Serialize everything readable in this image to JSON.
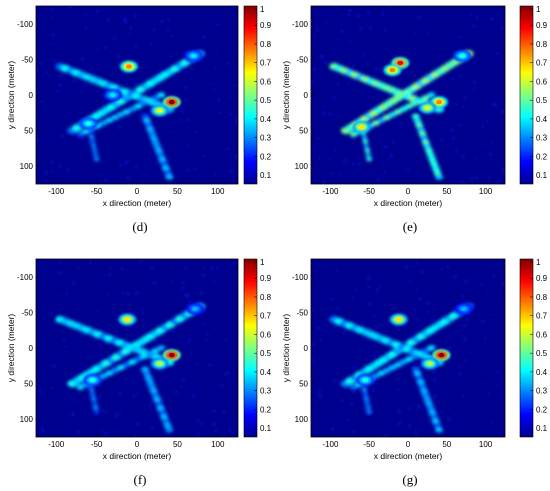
{
  "panels": [
    {
      "id": "d",
      "caption": "(d)",
      "xlabel": "x direction (meter)",
      "ylabel": "y direction (meter)",
      "x_ticks": [
        "-100",
        "-50",
        "0",
        "50",
        "100"
      ],
      "y_ticks": [
        "-100",
        "-50",
        "0",
        "50",
        "100"
      ],
      "colorbar_ticks": [
        "1",
        "0.9",
        "0.8",
        "0.7",
        "0.6",
        "0.5",
        "0.4",
        "0.3",
        "0.2",
        "0.1"
      ],
      "hotspots": [
        {
          "x": 43,
          "y": 10,
          "level": 1.0
        },
        {
          "x": -10,
          "y": -40,
          "level": 0.75
        },
        {
          "x": 28,
          "y": 22,
          "level": 0.6
        },
        {
          "x": 70,
          "y": -55,
          "level": 0.35
        },
        {
          "x": -60,
          "y": 40,
          "level": 0.4
        },
        {
          "x": -30,
          "y": 0,
          "level": 0.35
        }
      ]
    },
    {
      "id": "e",
      "caption": "(e)",
      "xlabel": "x direction (meter)",
      "ylabel": "y direction (meter)",
      "x_ticks": [
        "-100",
        "-50",
        "0",
        "50",
        "100"
      ],
      "y_ticks": [
        "-100",
        "-50",
        "0",
        "50",
        "100"
      ],
      "colorbar_ticks": [
        "1",
        "0.9",
        "0.8",
        "0.7",
        "0.6",
        "0.5",
        "0.4",
        "0.3",
        "0.2",
        "0.1"
      ],
      "hotspots": [
        {
          "x": -10,
          "y": -45,
          "level": 0.9
        },
        {
          "x": -20,
          "y": -35,
          "level": 0.75
        },
        {
          "x": 40,
          "y": 10,
          "level": 0.75
        },
        {
          "x": 25,
          "y": 18,
          "level": 0.6
        },
        {
          "x": -60,
          "y": 45,
          "level": 0.65
        },
        {
          "x": 70,
          "y": -55,
          "level": 0.4
        }
      ]
    },
    {
      "id": "f",
      "caption": "(f)",
      "xlabel": "x direction (meter)",
      "ylabel": "y direction (meter)",
      "x_ticks": [
        "-100",
        "-50",
        "0",
        "50",
        "100"
      ],
      "y_ticks": [
        "-100",
        "-50",
        "0",
        "50",
        "100"
      ],
      "colorbar_ticks": [
        "1",
        "0.9",
        "0.8",
        "0.7",
        "0.6",
        "0.5",
        "0.4",
        "0.3",
        "0.2",
        "0.1"
      ],
      "hotspots": [
        {
          "x": 43,
          "y": 10,
          "level": 1.0
        },
        {
          "x": -12,
          "y": -40,
          "level": 0.65
        },
        {
          "x": 28,
          "y": 22,
          "level": 0.55
        },
        {
          "x": 72,
          "y": -55,
          "level": 0.3
        },
        {
          "x": -55,
          "y": 45,
          "level": 0.4
        }
      ]
    },
    {
      "id": "g",
      "caption": "(g)",
      "xlabel": "x direction (meter)",
      "ylabel": "y direction (meter)",
      "x_ticks": [
        "-100",
        "-50",
        "0",
        "50",
        "100"
      ],
      "y_ticks": [
        "-100",
        "-50",
        "0",
        "50",
        "100"
      ],
      "colorbar_ticks": [
        "1",
        "0.9",
        "0.8",
        "0.7",
        "0.6",
        "0.5",
        "0.4",
        "0.3",
        "0.2",
        "0.1"
      ],
      "hotspots": [
        {
          "x": 43,
          "y": 10,
          "level": 1.0
        },
        {
          "x": -12,
          "y": -40,
          "level": 0.65
        },
        {
          "x": 28,
          "y": 22,
          "level": 0.55
        },
        {
          "x": 72,
          "y": -55,
          "level": 0.3
        },
        {
          "x": -55,
          "y": 45,
          "level": 0.4
        }
      ]
    }
  ],
  "axis_range": {
    "x": [
      -125,
      125
    ],
    "y": [
      -125,
      125
    ]
  },
  "colormap": "jet",
  "background_color": "#00008f"
}
